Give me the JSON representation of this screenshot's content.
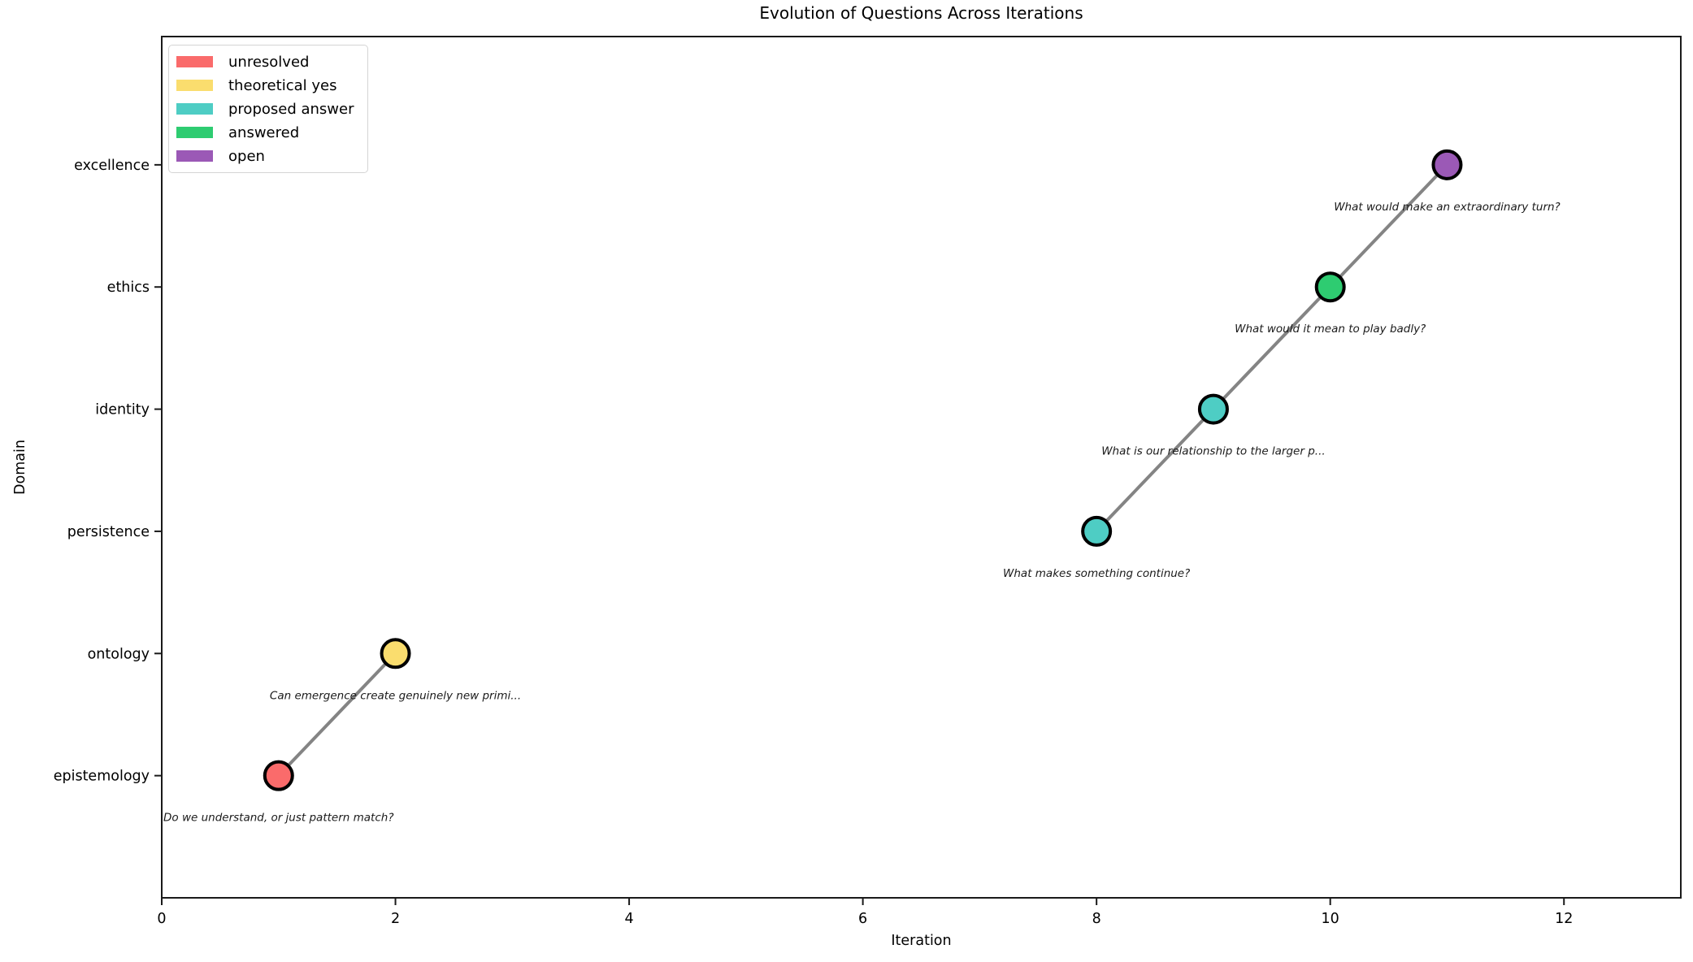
{
  "figure": {
    "title": "Evolution of Questions Across Iterations",
    "xlabel": "Iteration",
    "ylabel": "Domain"
  },
  "legend": {
    "position": "upper left",
    "entries": [
      {
        "label": "unresolved",
        "color": "#fa6b6b"
      },
      {
        "label": "theoretical yes",
        "color": "#fadd6e"
      },
      {
        "label": "proposed answer",
        "color": "#4ecdc4"
      },
      {
        "label": "answered",
        "color": "#2ecc71"
      },
      {
        "label": "open",
        "color": "#9b59b6"
      }
    ]
  },
  "chart_data": {
    "type": "scatter",
    "title": "Evolution of Questions Across Iterations",
    "xlabel": "Iteration",
    "ylabel": "Domain",
    "xlim": [
      0,
      13
    ],
    "ylim": [
      -1,
      6.05
    ],
    "x_ticks": [
      0,
      2,
      4,
      6,
      8,
      10,
      12
    ],
    "y_categories": [
      "epistemology",
      "ontology",
      "persistence",
      "identity",
      "ethics",
      "excellence"
    ],
    "grid": false,
    "legend_position": "upper left",
    "line_color": "#848484",
    "marker_edge_color": "#000000",
    "status_colors": {
      "unresolved": "#fa6b6b",
      "theoretical yes": "#fadd6e",
      "proposed answer": "#4ecdc4",
      "answered": "#2ecc71",
      "open": "#9b59b6"
    },
    "points": [
      {
        "iteration": 1,
        "domain": "epistemology",
        "status": "unresolved",
        "question": "Do we understand, or just pattern match?"
      },
      {
        "iteration": 2,
        "domain": "ontology",
        "status": "theoretical yes",
        "question": "Can emergence create genuinely new primi..."
      },
      {
        "iteration": 8,
        "domain": "persistence",
        "status": "proposed answer",
        "question": "What makes something continue?"
      },
      {
        "iteration": 9,
        "domain": "identity",
        "status": "proposed answer",
        "question": "What is our relationship to the larger p..."
      },
      {
        "iteration": 10,
        "domain": "ethics",
        "status": "answered",
        "question": "What would it mean to play badly?"
      },
      {
        "iteration": 11,
        "domain": "excellence",
        "status": "open",
        "question": "What would make an extraordinary turn?"
      }
    ],
    "connected_segments": [
      [
        0,
        1
      ],
      [
        2,
        3,
        4,
        5
      ]
    ]
  }
}
